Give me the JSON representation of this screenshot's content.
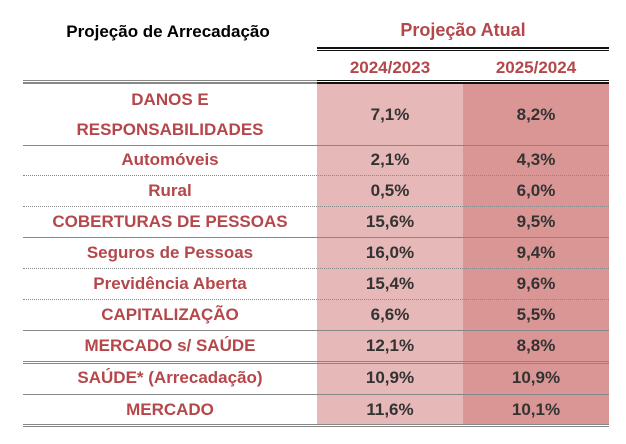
{
  "header": {
    "title": "Projeção de Arrecadação",
    "group_label": "Projeção Atual",
    "columns": [
      "2024/2023",
      "2025/2024"
    ]
  },
  "colors": {
    "label_text": "#b5474b",
    "col1_bg": "#e6b8b7",
    "col2_bg": "#da9694"
  },
  "rows": [
    {
      "label": "DANOS E RESPONSABILIDADES",
      "v1": "7,1%",
      "v2": "8,2%"
    },
    {
      "label": "Automóveis",
      "v1": "2,1%",
      "v2": "4,3%"
    },
    {
      "label": "Rural",
      "v1": "0,5%",
      "v2": "6,0%"
    },
    {
      "label": "COBERTURAS DE PESSOAS",
      "v1": "15,6%",
      "v2": "9,5%"
    },
    {
      "label": "Seguros de Pessoas",
      "v1": "16,0%",
      "v2": "9,4%"
    },
    {
      "label": "Previdência Aberta",
      "v1": "15,4%",
      "v2": "9,6%"
    },
    {
      "label": "CAPITALIZAÇÃO",
      "v1": "6,6%",
      "v2": "5,5%"
    },
    {
      "label": "MERCADO s/ SAÚDE",
      "v1": "12,1%",
      "v2": "8,8%"
    },
    {
      "label": "SAÚDE* (Arrecadação)",
      "v1": "10,9%",
      "v2": "10,9%"
    },
    {
      "label": "MERCADO",
      "v1": "11,6%",
      "v2": "10,1%"
    }
  ]
}
